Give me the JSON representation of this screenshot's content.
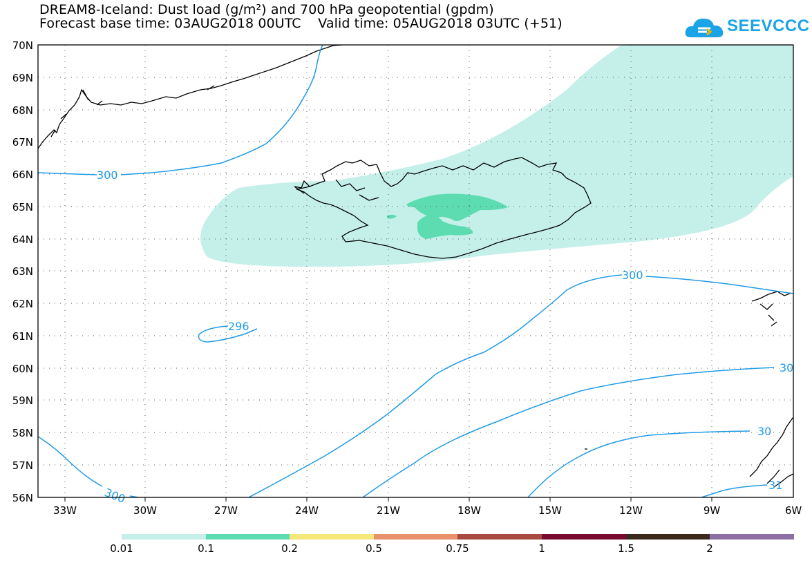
{
  "header": {
    "title_line1": "DREAM8-Iceland: Dust load (g/m²) and 700 hPa geopotential (gpdm)",
    "title_line2": "Forecast base time: 03AUG2018 00UTC    Valid time: 05AUG2018 03UTC (+51)",
    "logo_text": "SEEVCCC"
  },
  "map": {
    "lat_labels": [
      "70N",
      "69N",
      "68N",
      "67N",
      "66N",
      "65N",
      "64N",
      "63N",
      "62N",
      "61N",
      "60N",
      "59N",
      "58N",
      "57N",
      "56N"
    ],
    "lon_labels": [
      "33W",
      "30W",
      "27W",
      "24W",
      "21W",
      "18W",
      "15W",
      "12W",
      "9W",
      "6W"
    ],
    "contour_labels": [
      "300",
      "296",
      "300",
      "300",
      "30",
      "30",
      "31",
      "300"
    ]
  },
  "colorbar": {
    "labels": [
      "0.01",
      "0.1",
      "0.2",
      "0.5",
      "0.75",
      "1",
      "1.5",
      "2"
    ],
    "colors": [
      "#c5f0ea",
      "#5cdcb0",
      "#f5e87a",
      "#e8916b",
      "#a8493f",
      "#7a0a30",
      "#3a2a1e",
      "#8e6fa3"
    ]
  }
}
